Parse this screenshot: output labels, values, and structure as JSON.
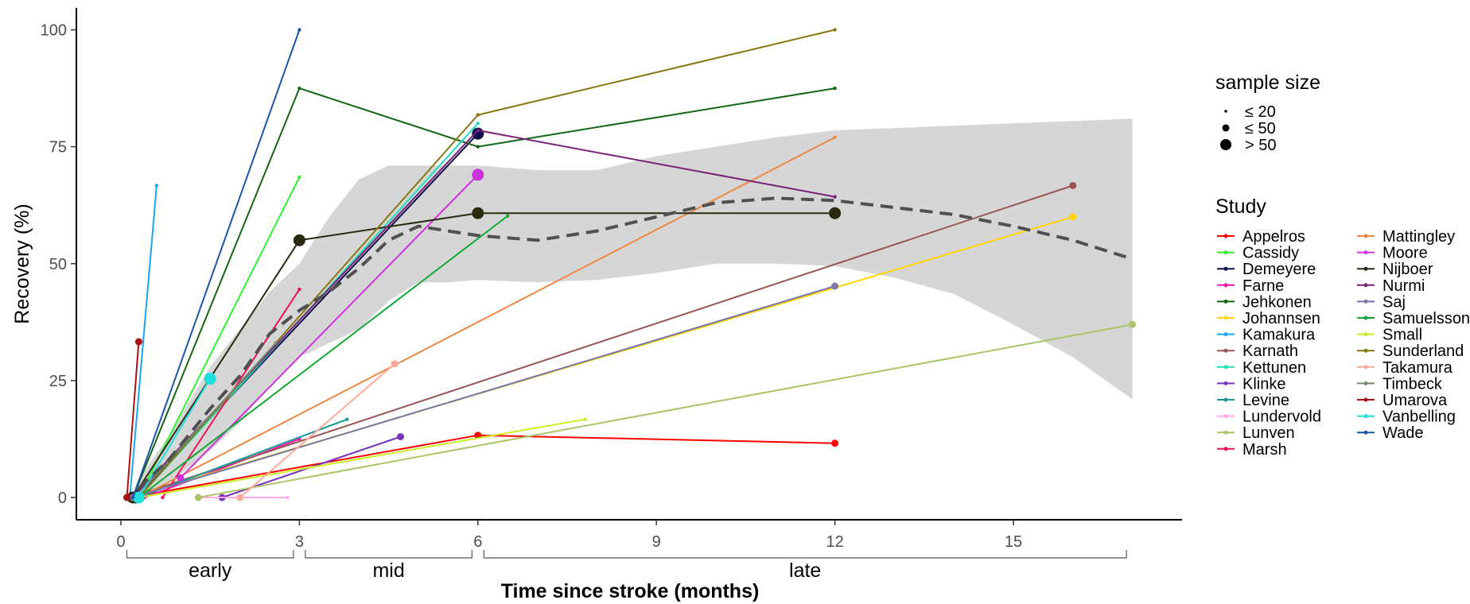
{
  "chart_data": {
    "type": "line",
    "xlabel": "Time since stroke (months)",
    "ylabel": "Recovery (%)",
    "xlim": [
      -1.5,
      17.3
    ],
    "ylim": [
      -4.5,
      105
    ],
    "x_ticks": [
      0,
      3,
      6,
      9,
      12,
      15
    ],
    "x_tick_labels": [
      "0",
      "3",
      "6",
      "9",
      "12",
      "15"
    ],
    "y_ticks": [
      0,
      25,
      50,
      75,
      100
    ],
    "y_tick_labels": [
      "0",
      "25",
      "50",
      "75",
      "100"
    ],
    "grid": false,
    "phases": [
      {
        "label": "early",
        "from": 0.1,
        "to": 2.9
      },
      {
        "label": "mid",
        "from": 3.1,
        "to": 5.9
      },
      {
        "label": "late",
        "from": 6.1,
        "to": 16.9
      }
    ],
    "size_legend": {
      "title": "sample size",
      "entries": [
        {
          "label": "≤ 20",
          "r": 1.8
        },
        {
          "label": "≤ 50",
          "r": 4.5
        },
        {
          "label": "> 50",
          "r": 7
        }
      ]
    },
    "study_legend_title": "Study",
    "series": [
      {
        "name": "Appelros",
        "color": "#ff0000",
        "points": [
          {
            "x": 0.15,
            "y": 0,
            "s": 2
          },
          {
            "x": 6,
            "y": 13.3,
            "s": 2
          },
          {
            "x": 12,
            "y": 11.6,
            "s": 2
          }
        ]
      },
      {
        "name": "Cassidy",
        "color": "#33ee33",
        "points": [
          {
            "x": 0.3,
            "y": 0,
            "s": 1
          },
          {
            "x": 3,
            "y": 68.5,
            "s": 1
          }
        ]
      },
      {
        "name": "Demeyere",
        "color": "#0d0d4d",
        "points": [
          {
            "x": 0.25,
            "y": 0,
            "s": 3
          },
          {
            "x": 6,
            "y": 77.8,
            "s": 3
          }
        ]
      },
      {
        "name": "Farne",
        "color": "#ff11aa",
        "points": [
          {
            "x": 0.4,
            "y": 0,
            "s": 1
          },
          {
            "x": 3,
            "y": 12.5,
            "s": 1
          }
        ]
      },
      {
        "name": "Jehkonen",
        "color": "#146614",
        "points": [
          {
            "x": 0.2,
            "y": 0,
            "s": 1
          },
          {
            "x": 3,
            "y": 87.5,
            "s": 1
          },
          {
            "x": 6,
            "y": 75,
            "s": 1
          },
          {
            "x": 12,
            "y": 87.5,
            "s": 1
          }
        ]
      },
      {
        "name": "Johannsen",
        "color": "#ffd400",
        "points": [
          {
            "x": 0.15,
            "y": 0,
            "s": 2
          },
          {
            "x": 16,
            "y": 60,
            "s": 2
          }
        ]
      },
      {
        "name": "Kamakura",
        "color": "#1aa7ee",
        "points": [
          {
            "x": 0.15,
            "y": 0,
            "s": 1
          },
          {
            "x": 0.6,
            "y": 66.7,
            "s": 1
          }
        ]
      },
      {
        "name": "Karnath",
        "color": "#995555",
        "points": [
          {
            "x": 0.15,
            "y": 0,
            "s": 2
          },
          {
            "x": 16,
            "y": 66.7,
            "s": 2
          }
        ]
      },
      {
        "name": "Kettunen",
        "color": "#22ddbb",
        "points": [
          {
            "x": 0.3,
            "y": 0,
            "s": 1
          },
          {
            "x": 6,
            "y": 80,
            "s": 1
          }
        ]
      },
      {
        "name": "Klinke",
        "color": "#7733bb",
        "points": [
          {
            "x": 1.7,
            "y": 0,
            "s": 2
          },
          {
            "x": 4.7,
            "y": 13,
            "s": 2
          }
        ]
      },
      {
        "name": "Levine",
        "color": "#1a9999",
        "points": [
          {
            "x": 0.3,
            "y": 0,
            "s": 1
          },
          {
            "x": 3.8,
            "y": 16.7,
            "s": 1
          }
        ]
      },
      {
        "name": "Lundervold",
        "color": "#ffaaee",
        "points": [
          {
            "x": 1.3,
            "y": 0,
            "s": 1
          },
          {
            "x": 2.8,
            "y": 0,
            "s": 1
          }
        ]
      },
      {
        "name": "Lunven",
        "color": "#aac466",
        "points": [
          {
            "x": 1.3,
            "y": 0,
            "s": 2
          },
          {
            "x": 17,
            "y": 37,
            "s": 2
          }
        ]
      },
      {
        "name": "Marsh",
        "color": "#ee1155",
        "points": [
          {
            "x": 0.7,
            "y": 0,
            "s": 1
          },
          {
            "x": 3,
            "y": 44.5,
            "s": 1
          }
        ]
      },
      {
        "name": "Mattingley",
        "color": "#ee8844",
        "points": [
          {
            "x": 0.3,
            "y": 0,
            "s": 1
          },
          {
            "x": 12,
            "y": 77,
            "s": 1
          }
        ]
      },
      {
        "name": "Moore",
        "color": "#cc33dd",
        "points": [
          {
            "x": 1.0,
            "y": 4.2,
            "s": 2
          },
          {
            "x": 6,
            "y": 69,
            "s": 3
          }
        ]
      },
      {
        "name": "Nijboer",
        "color": "#2a2a10",
        "points": [
          {
            "x": 0.2,
            "y": 0,
            "s": 3
          },
          {
            "x": 3,
            "y": 55,
            "s": 3
          },
          {
            "x": 6,
            "y": 60.8,
            "s": 3
          },
          {
            "x": 12,
            "y": 60.8,
            "s": 3
          }
        ]
      },
      {
        "name": "Nurmi",
        "color": "#772277",
        "points": [
          {
            "x": 0.2,
            "y": 0,
            "s": 1
          },
          {
            "x": 6,
            "y": 78.5,
            "s": 1
          },
          {
            "x": 12,
            "y": 64.3,
            "s": 1
          }
        ]
      },
      {
        "name": "Saj",
        "color": "#7777aa",
        "points": [
          {
            "x": 0.2,
            "y": 0,
            "s": 2
          },
          {
            "x": 12,
            "y": 45.2,
            "s": 2
          }
        ]
      },
      {
        "name": "Samuelsson",
        "color": "#11aa33",
        "points": [
          {
            "x": 0.3,
            "y": 0,
            "s": 1
          },
          {
            "x": 6.5,
            "y": 60.2,
            "s": 1
          }
        ]
      },
      {
        "name": "Small",
        "color": "#ccee22",
        "points": [
          {
            "x": 0.3,
            "y": 0,
            "s": 1
          },
          {
            "x": 7.8,
            "y": 16.7,
            "s": 1
          }
        ]
      },
      {
        "name": "Sunderland",
        "color": "#887711",
        "points": [
          {
            "x": 0.3,
            "y": 0,
            "s": 1
          },
          {
            "x": 6,
            "y": 81.8,
            "s": 1
          },
          {
            "x": 12,
            "y": 100,
            "s": 1
          }
        ]
      },
      {
        "name": "Takamura",
        "color": "#ffaa99",
        "points": [
          {
            "x": 2.0,
            "y": 0,
            "s": 2
          },
          {
            "x": 4.6,
            "y": 28.6,
            "s": 2
          }
        ]
      },
      {
        "name": "Timbeck",
        "color": "#778877",
        "points": [
          {
            "x": 0.25,
            "y": 0,
            "s": 1
          },
          {
            "x": 2.6,
            "y": 33,
            "s": 1
          }
        ]
      },
      {
        "name": "Umarova",
        "color": "#aa1111",
        "points": [
          {
            "x": 0.1,
            "y": 0,
            "s": 2
          },
          {
            "x": 0.3,
            "y": 33.3,
            "s": 2
          }
        ]
      },
      {
        "name": "Vanbelling",
        "color": "#22dddd",
        "points": [
          {
            "x": 0.3,
            "y": 0,
            "s": 3
          },
          {
            "x": 1.5,
            "y": 25.4,
            "s": 3
          }
        ]
      },
      {
        "name": "Wade",
        "color": "#1a55aa",
        "points": [
          {
            "x": 0.2,
            "y": 0,
            "s": 1
          },
          {
            "x": 3,
            "y": 100,
            "s": 1
          }
        ]
      }
    ],
    "smooth": {
      "color": "#505050",
      "x": [
        0.3,
        0.8,
        1.5,
        2.0,
        2.5,
        3.0,
        3.5,
        4.0,
        4.5,
        5.0,
        5.5,
        6.0,
        7.0,
        8.0,
        9.0,
        10.0,
        11.0,
        12.0,
        13.0,
        14.0,
        15.0,
        16.0,
        17.0
      ],
      "y": [
        2,
        8,
        19,
        26,
        35,
        40,
        44,
        49,
        55,
        58,
        57,
        56,
        55,
        57,
        60,
        63,
        64,
        63.5,
        62,
        60.5,
        58,
        55,
        51
      ],
      "upper": [
        4,
        13,
        28,
        36,
        44,
        50,
        60,
        68,
        71,
        71,
        71,
        71,
        70,
        70,
        73,
        75,
        77,
        78.5,
        79,
        79.5,
        80,
        80.5,
        81
      ],
      "lower": [
        0,
        3,
        10,
        16,
        24,
        30,
        33,
        36,
        42,
        46,
        46,
        46.5,
        46,
        46.5,
        48,
        50,
        50,
        49.5,
        47,
        43.5,
        37,
        30,
        21
      ]
    }
  }
}
